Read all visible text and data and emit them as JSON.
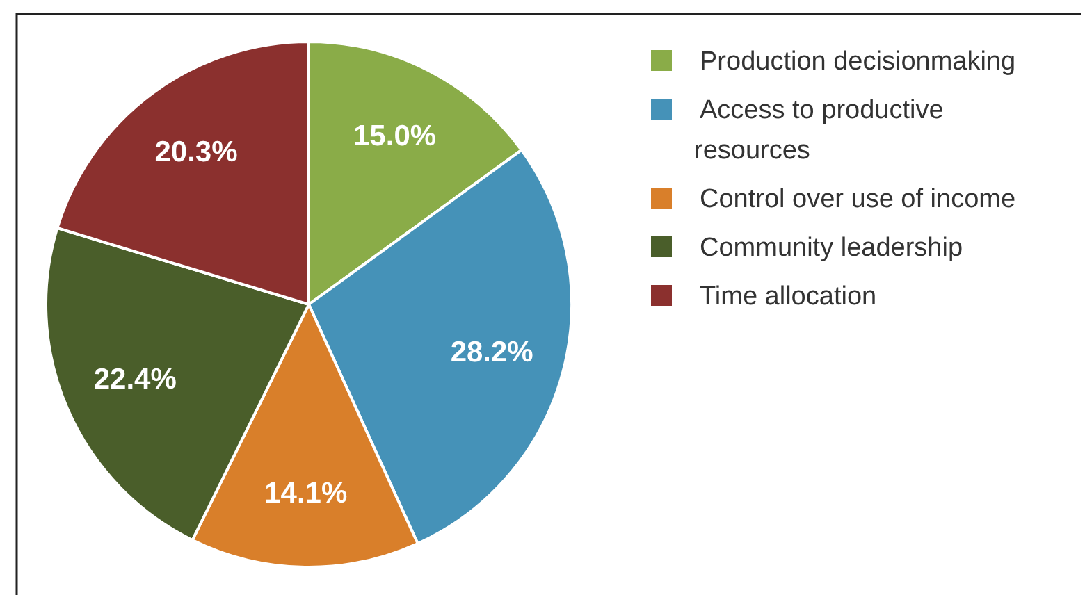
{
  "chart_data": {
    "type": "pie",
    "categories": [
      "Production decisionmaking",
      "Access to productive resources",
      "Control over use of income",
      "Community leadership",
      "Time allocation"
    ],
    "values": [
      15.0,
      28.2,
      14.1,
      22.4,
      20.3
    ],
    "colors": [
      "#8aac48",
      "#4592b8",
      "#d97f2a",
      "#4a5e2a",
      "#8b302e"
    ],
    "value_labels": [
      "15.0%",
      "28.2%",
      "14.1%",
      "22.4%",
      "20.3%"
    ],
    "legend": "right"
  }
}
